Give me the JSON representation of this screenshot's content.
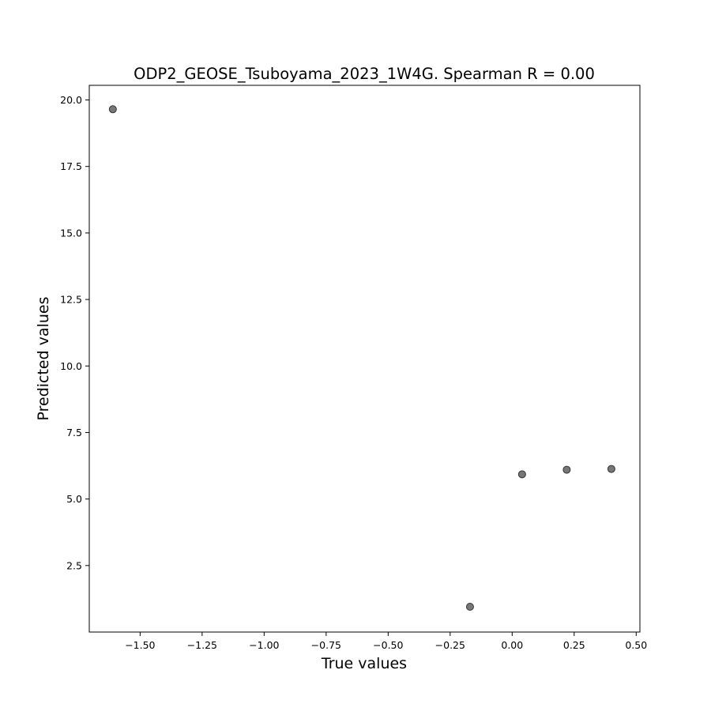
{
  "chart_data": {
    "type": "scatter",
    "title": "ODP2_GEOSE_Tsuboyama_2023_1W4G. Spearman R = 0.00",
    "xlabel": "True values",
    "ylabel": "Predicted values",
    "xlim": [
      -1.705,
      0.515
    ],
    "ylim": [
      0.0,
      20.55
    ],
    "x_ticks": [
      -1.5,
      -1.25,
      -1.0,
      -0.75,
      -0.5,
      -0.25,
      0.0,
      0.25,
      0.5
    ],
    "x_tick_labels": [
      "−1.50",
      "−1.25",
      "−1.00",
      "−0.75",
      "−0.50",
      "−0.25",
      "0.00",
      "0.25",
      "0.50"
    ],
    "y_ticks": [
      2.5,
      5.0,
      7.5,
      10.0,
      12.5,
      15.0,
      17.5,
      20.0
    ],
    "y_tick_labels": [
      "2.5",
      "5.0",
      "7.5",
      "10.0",
      "12.5",
      "15.0",
      "17.5",
      "20.0"
    ],
    "grid": false,
    "legend": "none",
    "marker_color": "#555555",
    "points": [
      {
        "x": -1.61,
        "y": 19.65
      },
      {
        "x": -0.17,
        "y": 0.95
      },
      {
        "x": 0.04,
        "y": 5.93
      },
      {
        "x": 0.22,
        "y": 6.1
      },
      {
        "x": 0.4,
        "y": 6.13
      }
    ]
  }
}
